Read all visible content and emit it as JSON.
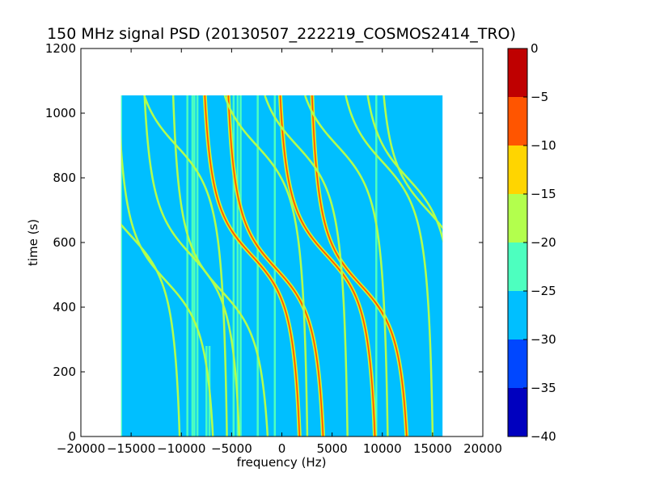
{
  "chart_data": {
    "type": "heatmap",
    "title": "150 MHz signal PSD (20130507_222219_COSMOS2414_TRO)",
    "xlabel": "frequency (Hz)",
    "ylabel": "time (s)",
    "xlim": [
      -20000,
      20000
    ],
    "ylim": [
      0,
      1200
    ],
    "xticks": [
      -20000,
      -15000,
      -10000,
      -5000,
      0,
      5000,
      10000,
      15000,
      20000
    ],
    "xtick_labels": [
      "−20000",
      "−15000",
      "−10000",
      "−5000",
      "0",
      "5000",
      "10000",
      "15000",
      "20000"
    ],
    "yticks": [
      0,
      200,
      400,
      600,
      800,
      1000,
      1200
    ],
    "ytick_labels": [
      "0",
      "200",
      "400",
      "600",
      "800",
      "1000",
      "1200"
    ],
    "data_extent": {
      "x": [
        -16000,
        16000
      ],
      "y": [
        0,
        1055
      ]
    },
    "background_level": -27.5,
    "colorbar": {
      "range": [
        -40,
        0
      ],
      "levels": [
        -40,
        -35,
        -30,
        -25,
        -20,
        -15,
        -10,
        -5,
        0
      ],
      "tick_labels": [
        "−40",
        "−35",
        "−30",
        "−25",
        "−20",
        "−15",
        "−10",
        "−5",
        "0"
      ],
      "colors": [
        "#0000bf",
        "#0047ff",
        "#00bfff",
        "#4dffbf",
        "#b3ff4d",
        "#ffd500",
        "#ff5500",
        "#bf0000"
      ]
    },
    "vertical_lines": [
      {
        "x": -16000,
        "y_top": 1055,
        "level": -22.5
      },
      {
        "x": -9400,
        "y_top": 1055,
        "level": -22.5
      },
      {
        "x": -8900,
        "y_top": 1055,
        "level": -22.5
      },
      {
        "x": -8700,
        "y_top": 1055,
        "level": -22.5
      },
      {
        "x": -8400,
        "y_top": 1055,
        "level": -22.5
      },
      {
        "x": -7500,
        "y_top": 280,
        "level": -22.5
      },
      {
        "x": -7200,
        "y_top": 280,
        "level": -22.5
      },
      {
        "x": -4800,
        "y_top": 1055,
        "level": -22.5
      },
      {
        "x": -4400,
        "y_top": 1055,
        "level": -22.5
      },
      {
        "x": -4100,
        "y_top": 1055,
        "level": -22.5
      },
      {
        "x": -2400,
        "y_top": 1055,
        "level": -22.5
      },
      {
        "x": -700,
        "y_top": 1055,
        "level": -22.5
      },
      {
        "x": 9400,
        "y_top": 1055,
        "level": -22.5
      }
    ],
    "doppler_traces": [
      {
        "x0": -15000,
        "t0": 620,
        "a": 3500,
        "w": 120,
        "level": -17.5
      },
      {
        "x0": -11500,
        "t0": 480,
        "a": 3500,
        "w": 120,
        "level": -17.5
      },
      {
        "x0": -9000,
        "t0": 560,
        "a": 3500,
        "w": 120,
        "level": -17.5
      },
      {
        "x0": -10500,
        "t0": 900,
        "a": 3500,
        "w": 120,
        "level": -17.5
      },
      {
        "x0": -3000,
        "t0": 560,
        "a": 3500,
        "w": 120,
        "level": -7.5
      },
      {
        "x0": -600,
        "t0": 520,
        "a": 3500,
        "w": 120,
        "level": -7.5
      },
      {
        "x0": 4500,
        "t0": 560,
        "a": 3500,
        "w": 120,
        "level": -7.5
      },
      {
        "x0": 7800,
        "t0": 470,
        "a": 3500,
        "w": 120,
        "level": -7.5
      },
      {
        "x0": -2500,
        "t0": 900,
        "a": 3500,
        "w": 120,
        "level": -17.5
      },
      {
        "x0": 1500,
        "t0": 900,
        "a": 3500,
        "w": 120,
        "level": -17.5
      },
      {
        "x0": 5500,
        "t0": 900,
        "a": 3500,
        "w": 120,
        "level": -17.5
      },
      {
        "x0": 10000,
        "t0": 850,
        "a": 3500,
        "w": 120,
        "level": -17.5
      },
      {
        "x0": 12500,
        "t0": 800,
        "a": 3500,
        "w": 120,
        "level": -17.5
      },
      {
        "x0": 14500,
        "t0": 700,
        "a": 3500,
        "w": 120,
        "level": -17.5
      },
      {
        "x0": -6000,
        "t0": 450,
        "a": 3500,
        "w": 120,
        "level": -17.5
      }
    ]
  }
}
